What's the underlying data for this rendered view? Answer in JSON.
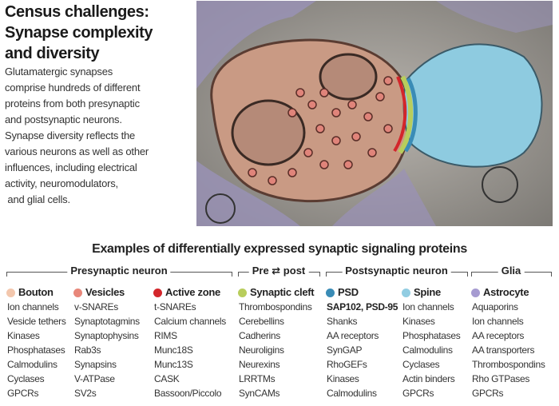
{
  "header": {
    "title": [
      "Census challenges:",
      "Synapse complexity",
      "and diversity"
    ],
    "body": [
      "Glutamatergic synapses",
      "comprise hundreds of different",
      "proteins from both presynaptic",
      "and postsynaptic neurons.",
      "Synapse diversity reflects the",
      "various neurons as well as other",
      "influences, including electrical",
      "activity, neuromodulators,",
      " and glial cells."
    ]
  },
  "table": {
    "title": "Examples of differentially expressed synaptic signaling proteins",
    "groups": [
      "Presynaptic neuron",
      "Pre ⇄ post",
      "Postsynaptic neuron",
      "Glia"
    ],
    "columns": [
      {
        "name": "Bouton",
        "color": "#f3c7ad",
        "items": [
          "Ion channels",
          "Vesicle tethers",
          "Kinases",
          "Phosphatases",
          "Calmodulins",
          "Cyclases",
          "GPCRs"
        ]
      },
      {
        "name": "Vesicles",
        "color": "#e8877a",
        "items": [
          "v-SNAREs",
          "Synaptotagmins",
          "Synaptophysins",
          "Rab3s",
          "Synapsins",
          "V-ATPase",
          "SV2s"
        ]
      },
      {
        "name": "Active zone",
        "color": "#d3262b",
        "items": [
          "t-SNAREs",
          "Calcium channels",
          "RIMS",
          "Munc18S",
          "Munc13S",
          "CASK",
          "Bassoon/Piccolo"
        ]
      },
      {
        "name": "Synaptic cleft",
        "color": "#b8cd5c",
        "items": [
          "Thrombospondins",
          "Cerebellins",
          "Cadherins",
          "Neuroligins",
          "Neurexins",
          "LRRTMs",
          "SynCAMs"
        ]
      },
      {
        "name": "PSD",
        "color": "#3a8cb6",
        "items": [
          "SAP102, PSD-95",
          "Shanks",
          "AA receptors",
          "SynGAP",
          "RhoGEFs",
          "Kinases",
          "Calmodulins"
        ]
      },
      {
        "name": "Spine",
        "color": "#92cde2",
        "items": [
          "Ion channels",
          "Kinases",
          "Phosphatases",
          "Calmodulins",
          "Cyclases",
          "Actin binders",
          "GPCRs"
        ]
      },
      {
        "name": "Astrocyte",
        "color": "#a69bd1",
        "items": [
          "Aquaporins",
          "Ion channels",
          "AA receptors",
          "AA transporters",
          "Thrombospondins",
          "Rho GTPases",
          "GPCRs"
        ]
      }
    ]
  }
}
